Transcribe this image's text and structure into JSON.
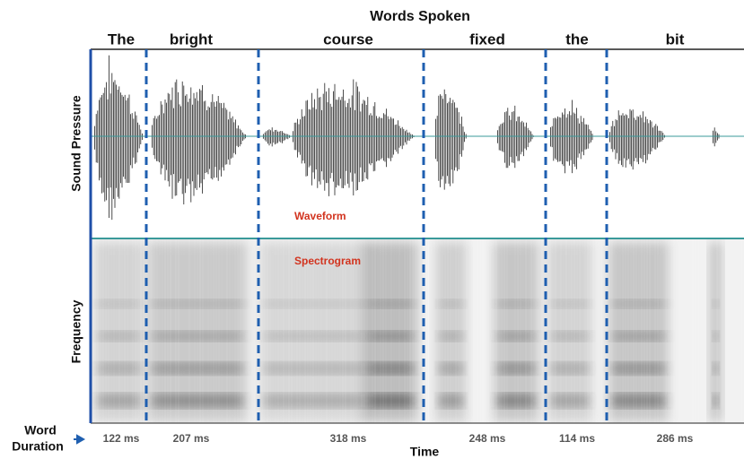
{
  "title": "Words Spoken",
  "words": [
    {
      "label": "The",
      "duration": "122 ms"
    },
    {
      "label": "bright",
      "duration": "207 ms"
    },
    {
      "label": "course",
      "duration": "318 ms"
    },
    {
      "label": "fixed",
      "duration": "248 ms"
    },
    {
      "label": "the",
      "duration": "114 ms"
    },
    {
      "label": "bit",
      "duration": "286 ms"
    }
  ],
  "waveform_axis": "Sound Pressure",
  "spectrogram_axis": "Frequency",
  "waveform_label": "Waveform",
  "spectrogram_label": "Spectrogram",
  "duration_label": {
    "line1": "Word",
    "line2": "Duration"
  },
  "x_axis": "Time"
}
